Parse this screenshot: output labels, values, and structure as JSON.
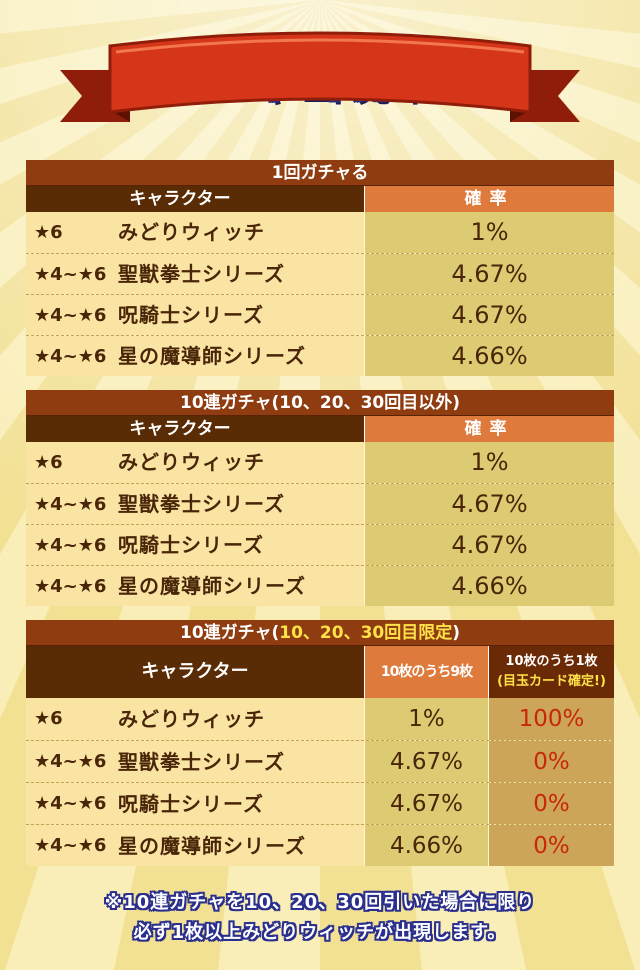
{
  "banner": {
    "title": "ガチャ出現確率"
  },
  "columns": {
    "character": "キャラクター",
    "rate": "確率"
  },
  "section1": {
    "title": "1回ガチャる",
    "rows": [
      {
        "rarity": "★6",
        "name": "みどりウィッチ",
        "rate": "1%"
      },
      {
        "rarity": "★4~★6",
        "name": "聖獣拳士シリーズ",
        "rate": "4.67%"
      },
      {
        "rarity": "★4~★6",
        "name": "呪騎士シリーズ",
        "rate": "4.67%"
      },
      {
        "rarity": "★4~★6",
        "name": "星の魔導師シリーズ",
        "rate": "4.66%"
      }
    ]
  },
  "section2": {
    "title": "10連ガチャ(10、20、30回目以外)",
    "rows": [
      {
        "rarity": "★6",
        "name": "みどりウィッチ",
        "rate": "1%"
      },
      {
        "rarity": "★4~★6",
        "name": "聖獣拳士シリーズ",
        "rate": "4.67%"
      },
      {
        "rarity": "★4~★6",
        "name": "呪騎士シリーズ",
        "rate": "4.67%"
      },
      {
        "rarity": "★4~★6",
        "name": "星の魔導師シリーズ",
        "rate": "4.66%"
      }
    ]
  },
  "section3": {
    "title_prefix": "10連ガチャ(",
    "title_highlight": "10、20、30回目限定",
    "title_suffix": ")",
    "col_nine": "10枚のうち9枚",
    "col_one": "10枚のうち1枚",
    "col_one_note": "(目玉カード確定!)",
    "rows": [
      {
        "rarity": "★6",
        "name": "みどりウィッチ",
        "rate_nine": "1%",
        "rate_one": "100%"
      },
      {
        "rarity": "★4~★6",
        "name": "聖獣拳士シリーズ",
        "rate_nine": "4.67%",
        "rate_one": "0%"
      },
      {
        "rarity": "★4~★6",
        "name": "呪騎士シリーズ",
        "rate_nine": "4.67%",
        "rate_one": "0%"
      },
      {
        "rarity": "★4~★6",
        "name": "星の魔導師シリーズ",
        "rate_nine": "4.66%",
        "rate_one": "0%"
      }
    ]
  },
  "footnote": {
    "line1": "※10連ガチャを10、20、30回引いた場合に限り",
    "line2": "必ず1枚以上みどりウィッチが出現します。"
  },
  "colors": {
    "section_title": "#8e3c10",
    "header_dark": "#5a2c06",
    "header_orange": "#de7a3c",
    "name_cell": "#fae4a4",
    "rate_cell": "#dccb73",
    "ribbon_red": "#d5361a",
    "guaranteed_red": "#c8280a"
  }
}
